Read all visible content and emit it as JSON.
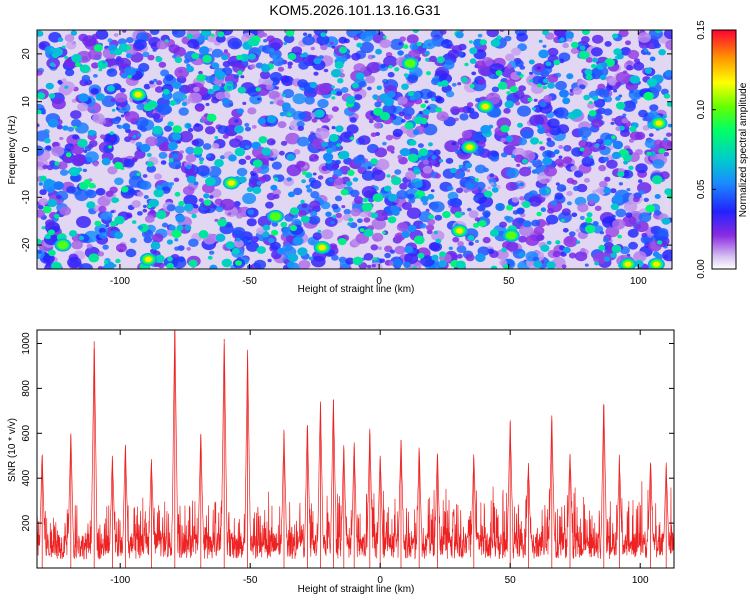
{
  "figure_title": "KOM5.2026.101.13.16.G31",
  "colors": {
    "snr_line": "#ee2222",
    "frame": "#000000",
    "heatmap_background": "#e2d7f2"
  },
  "chart_data": [
    {
      "type": "heatmap",
      "title": "KOM5.2026.101.13.16.G31",
      "xlabel": "Height of straight line (km)",
      "ylabel": "Frequency (Hz)",
      "xlim": [
        -132,
        113
      ],
      "ylim": [
        -25,
        25
      ],
      "xticks": [
        -100,
        -50,
        0,
        50,
        100
      ],
      "yticks": [
        -20,
        -10,
        0,
        10,
        20
      ],
      "xtick_labels": [
        "-100",
        "-50",
        "0",
        "50",
        "100"
      ],
      "ytick_labels": [
        "-20",
        "-10",
        "0",
        "10",
        "20"
      ],
      "colorbar": {
        "label": "Normalized spectral amplitude",
        "range": [
          0.0,
          0.15
        ],
        "ticks": [
          0.0,
          0.05,
          0.1,
          0.15
        ],
        "tick_labels": [
          "0.00",
          "0.05",
          "0.10",
          "0.15"
        ]
      },
      "peaks": [
        {
          "x": -93,
          "y": 11.5,
          "v": 0.135
        },
        {
          "x": -57,
          "y": -7,
          "v": 0.13
        },
        {
          "x": -89,
          "y": -23,
          "v": 0.12
        },
        {
          "x": -22,
          "y": -20.5,
          "v": 0.13
        },
        {
          "x": 35,
          "y": 0.5,
          "v": 0.13
        },
        {
          "x": 41,
          "y": 9,
          "v": 0.125
        },
        {
          "x": 31,
          "y": -17,
          "v": 0.13
        },
        {
          "x": 108,
          "y": 5.5,
          "v": 0.13
        },
        {
          "x": 107,
          "y": -24,
          "v": 0.13
        },
        {
          "x": 96,
          "y": -24,
          "v": 0.12
        },
        {
          "x": -122,
          "y": -20,
          "v": 0.1
        },
        {
          "x": 51,
          "y": -18,
          "v": 0.11
        },
        {
          "x": -40,
          "y": -14,
          "v": 0.1
        },
        {
          "x": 12,
          "y": 18,
          "v": 0.11
        }
      ]
    },
    {
      "type": "line",
      "xlabel": "Height of straight line (km)",
      "ylabel": "SNR (10 * v/v)",
      "xlim": [
        -132,
        113
      ],
      "ylim": [
        0,
        1060
      ],
      "xticks": [
        -100,
        -50,
        0,
        50,
        100
      ],
      "yticks": [
        200,
        400,
        600,
        800,
        1000
      ],
      "xtick_labels": [
        "-100",
        "-50",
        "0",
        "50",
        "100"
      ],
      "ytick_labels": [
        "200",
        "400",
        "600",
        "800",
        "1000"
      ],
      "peaks": [
        {
          "x": -130,
          "y": 500
        },
        {
          "x": -119,
          "y": 590
        },
        {
          "x": -110,
          "y": 1010
        },
        {
          "x": -103,
          "y": 480
        },
        {
          "x": -98,
          "y": 540
        },
        {
          "x": -88,
          "y": 470
        },
        {
          "x": -79,
          "y": 1080
        },
        {
          "x": -69,
          "y": 590
        },
        {
          "x": -60,
          "y": 1020
        },
        {
          "x": -51,
          "y": 940
        },
        {
          "x": -37,
          "y": 600
        },
        {
          "x": -28,
          "y": 630
        },
        {
          "x": -23,
          "y": 730
        },
        {
          "x": -18,
          "y": 750
        },
        {
          "x": -14,
          "y": 530
        },
        {
          "x": -10,
          "y": 540
        },
        {
          "x": -4,
          "y": 600
        },
        {
          "x": 0,
          "y": 500
        },
        {
          "x": 8,
          "y": 570
        },
        {
          "x": 15,
          "y": 520
        },
        {
          "x": 22,
          "y": 500
        },
        {
          "x": 36,
          "y": 490
        },
        {
          "x": 50,
          "y": 650
        },
        {
          "x": 57,
          "y": 450
        },
        {
          "x": 66,
          "y": 660
        },
        {
          "x": 73,
          "y": 500
        },
        {
          "x": 86,
          "y": 730
        },
        {
          "x": 92,
          "y": 470
        },
        {
          "x": 104,
          "y": 470
        },
        {
          "x": 110,
          "y": 450
        }
      ]
    }
  ]
}
